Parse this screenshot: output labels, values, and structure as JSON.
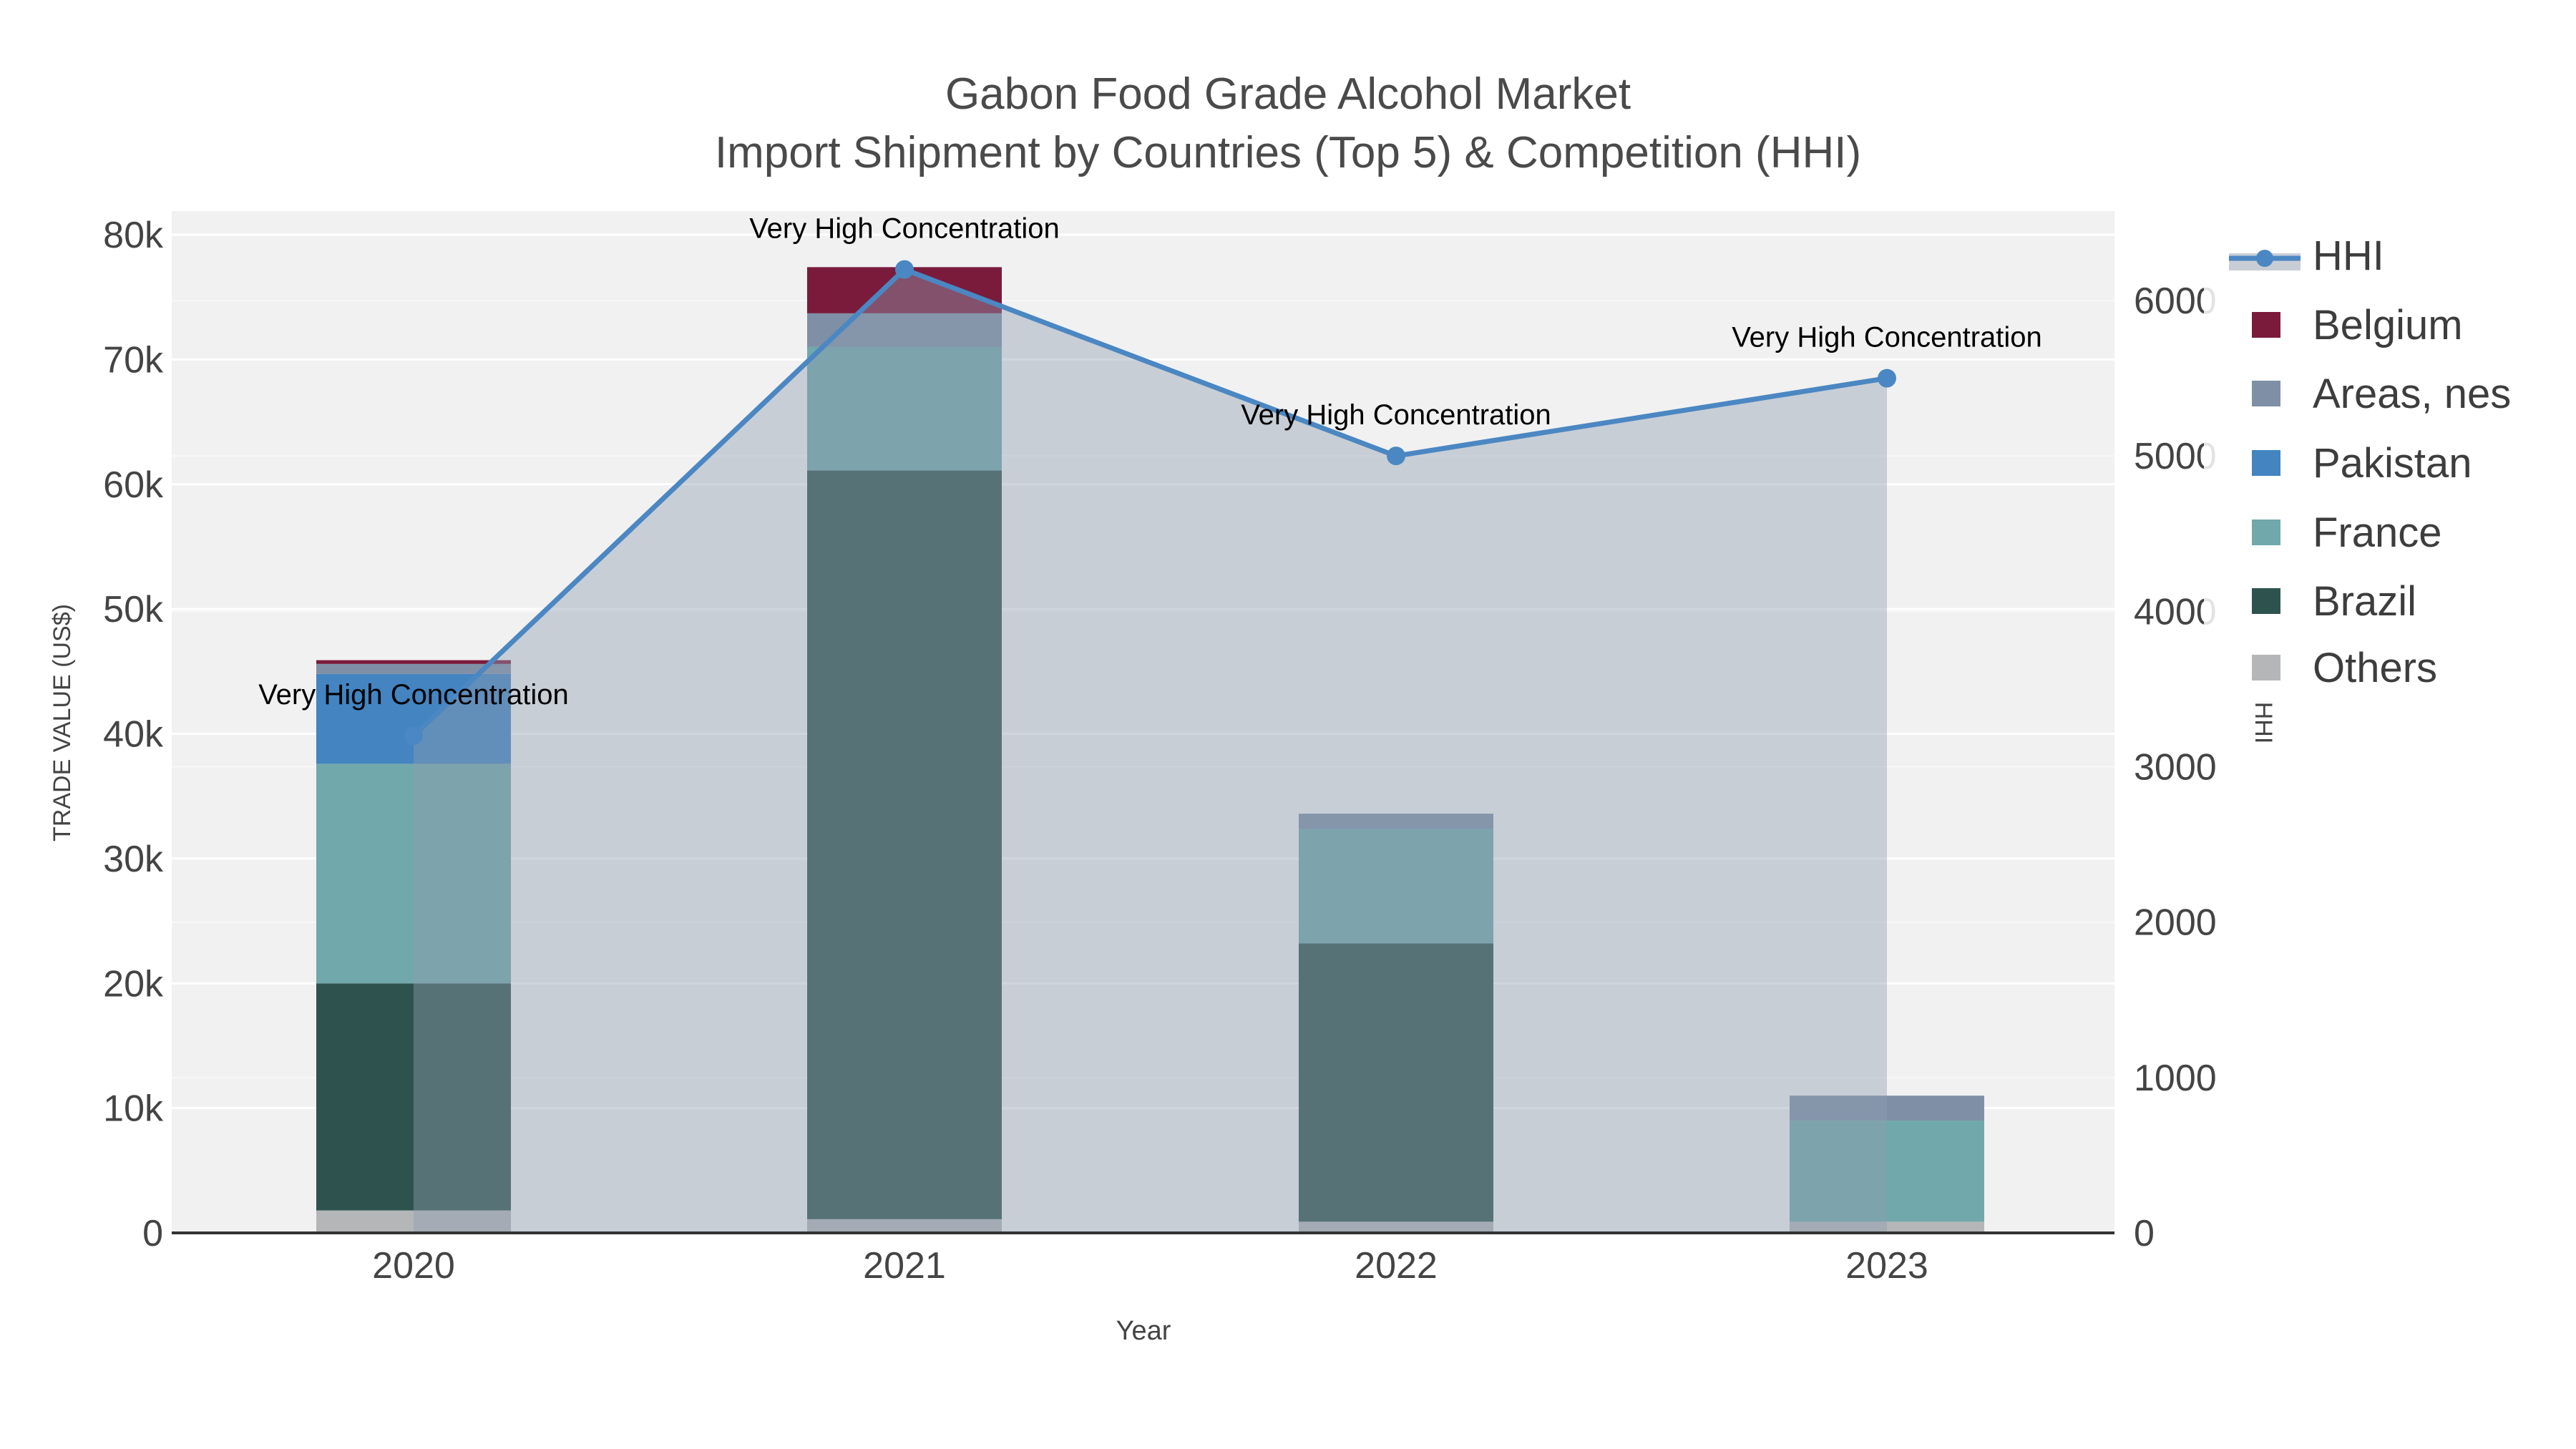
{
  "title": {
    "line1": "Gabon Food Grade Alcohol Market",
    "line2": "Import Shipment by Countries (Top 5) & Competition (HHI)"
  },
  "chart_data": {
    "type": "bar+line",
    "x_label": "Year",
    "categories": [
      "2020",
      "2021",
      "2022",
      "2023"
    ],
    "y_left": {
      "label": "TRADE VALUE (US$)",
      "tick_values": [
        0,
        10000,
        20000,
        30000,
        40000,
        50000,
        60000,
        70000,
        80000
      ],
      "tick_labels": [
        "0",
        "10k",
        "20k",
        "30k",
        "40k",
        "50k",
        "60k",
        "70k",
        "80k"
      ],
      "range": [
        0,
        80000
      ]
    },
    "y_right": {
      "label": "HHI",
      "tick_values": [
        0,
        1000,
        2000,
        3000,
        4000,
        5000,
        6000
      ],
      "tick_labels": [
        "0",
        "1000",
        "2000",
        "3000",
        "4000",
        "5000",
        "6000"
      ],
      "range": [
        0,
        6450
      ]
    },
    "bar_series_bottom_to_top": [
      {
        "name": "Others",
        "color": "#b4b6b7",
        "values": [
          1800,
          1100,
          900,
          900
        ]
      },
      {
        "name": "Brazil",
        "color": "#2e534f",
        "values": [
          18200,
          60000,
          22300,
          0
        ]
      },
      {
        "name": "France",
        "color": "#71a8ab",
        "values": [
          17600,
          9900,
          9200,
          8100
        ]
      },
      {
        "name": "Pakistan",
        "color": "#4384c1",
        "values": [
          7200,
          0,
          0,
          0
        ]
      },
      {
        "name": "Areas, nes",
        "color": "#7f90a6",
        "values": [
          800,
          2700,
          1200,
          2000
        ]
      },
      {
        "name": "Belgium",
        "color": "#7a1b3c",
        "values": [
          300,
          3700,
          0,
          0
        ]
      }
    ],
    "bar_totals": [
      45900,
      77400,
      33600,
      11000
    ],
    "line_series": {
      "name": "HHI",
      "color": "#4b87c2",
      "fill_color": "rgba(142,157,176,0.42)",
      "values": [
        3200,
        6200,
        5000,
        5500
      ]
    },
    "annotations": [
      {
        "text": "Very High Concentration",
        "x_index": 0
      },
      {
        "text": "Very High Concentration",
        "x_index": 1
      },
      {
        "text": "Very High Concentration",
        "x_index": 2
      },
      {
        "text": "Very High Concentration",
        "x_index": 3
      }
    ],
    "legend": {
      "items": [
        {
          "name": "HHI",
          "kind": "line"
        },
        {
          "name": "Belgium",
          "kind": "swatch",
          "color": "#7a1b3c"
        },
        {
          "name": "Areas, nes",
          "kind": "swatch",
          "color": "#7f90a6"
        },
        {
          "name": "Pakistan",
          "kind": "swatch",
          "color": "#4384c1"
        },
        {
          "name": "France",
          "kind": "swatch",
          "color": "#71a8ab"
        },
        {
          "name": "Brazil",
          "kind": "swatch",
          "color": "#2e534f"
        },
        {
          "name": "Others",
          "kind": "swatch",
          "color": "#b4b6b7"
        }
      ]
    },
    "colors": {
      "plot_background": "#f1f1f2",
      "gridline": "#ffffff",
      "axis_line": "#333333",
      "tick_text": "#444444",
      "annotation_text": "#000000",
      "legend_text": "#3d3d3d"
    }
  }
}
